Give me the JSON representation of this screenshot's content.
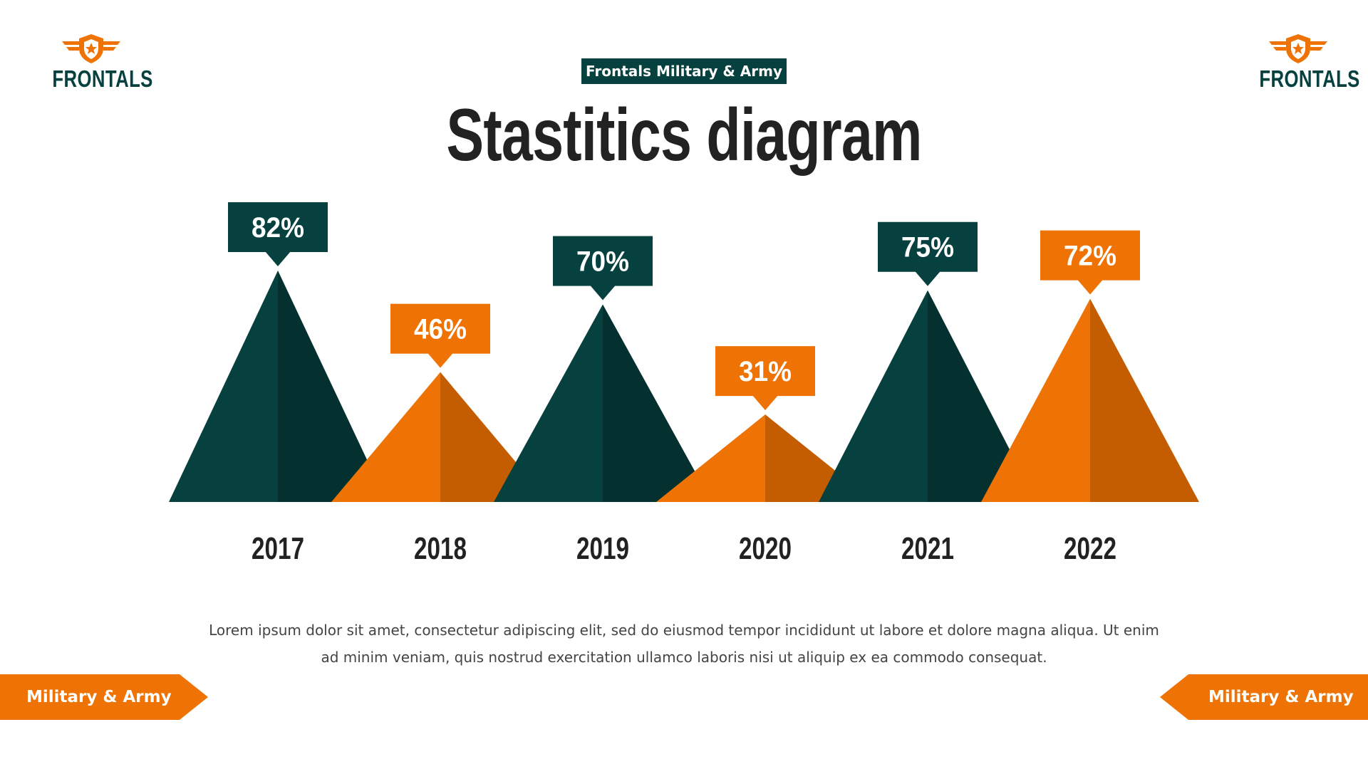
{
  "brand": {
    "logo_text": "FRONTALS",
    "badge": "Frontals Military & Army",
    "ribbon_label": "Military & Army"
  },
  "title": "Stastitics diagram",
  "caption": "Lorem ipsum dolor sit amet, consectetur adipiscing elit, sed do eiusmod tempor incididunt ut labore et dolore magna aliqua. Ut enim ad minim veniam, quis nostrud exercitation ullamco laboris nisi ut aliquip ex ea commodo consequat.",
  "colors": {
    "teal": "#06403f",
    "teal_dark": "#04302f",
    "orange": "#ef7304",
    "orange_dark": "#c45c02",
    "text_dark": "#222222"
  },
  "chart_data": {
    "type": "bar",
    "categories": [
      "2017",
      "2018",
      "2019",
      "2020",
      "2021",
      "2022"
    ],
    "values": [
      82,
      46,
      70,
      31,
      75,
      72
    ],
    "value_labels": [
      "82%",
      "46%",
      "70%",
      "31%",
      "75%",
      "72%"
    ],
    "series_colors": [
      "teal",
      "orange",
      "teal",
      "orange",
      "teal",
      "orange"
    ],
    "title": "Stastitics diagram",
    "ylim": [
      0,
      100
    ],
    "grid": false,
    "legend": "none"
  }
}
